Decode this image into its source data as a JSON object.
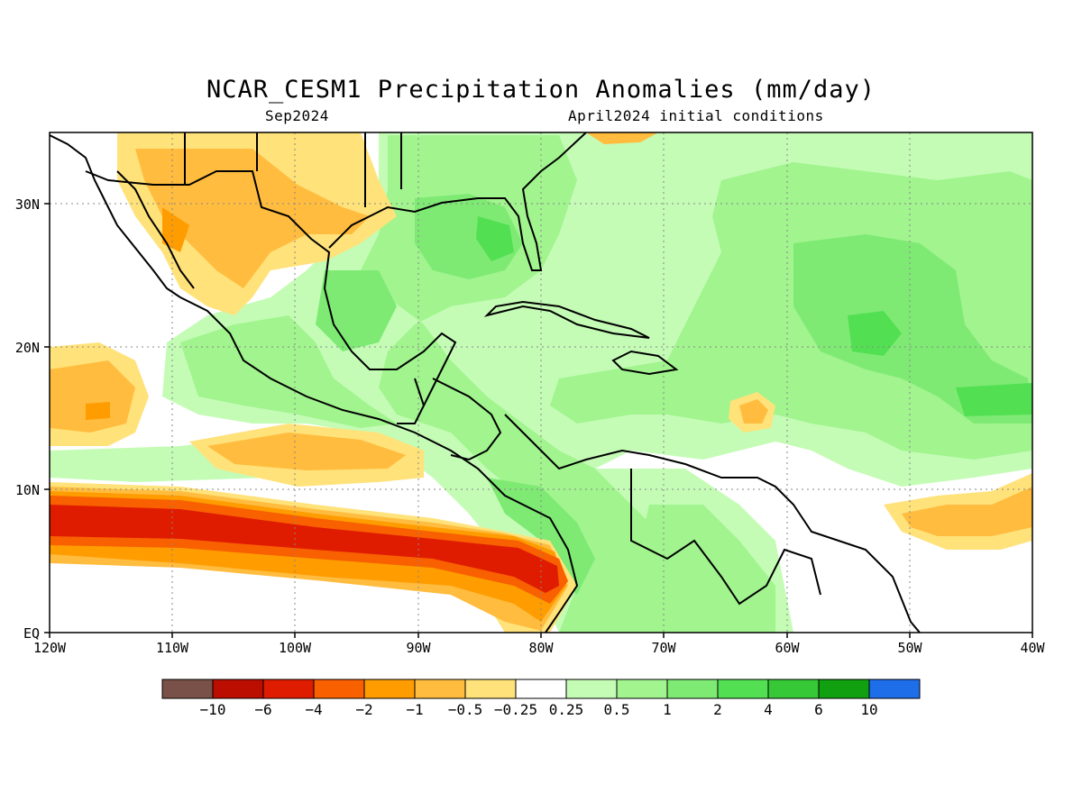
{
  "title": "NCAR_CESM1 Precipitation Anomalies (mm/day)",
  "subtitle_left": "Sep2024",
  "subtitle_right": "April2024 initial conditions",
  "lon_ticks": [
    "120W",
    "110W",
    "100W",
    "90W",
    "80W",
    "70W",
    "60W",
    "50W",
    "40W"
  ],
  "lat_ticks": [
    "30N",
    "20N",
    "10N",
    "EQ"
  ],
  "colorbar": {
    "colors": [
      "#7a5148",
      "#bb0d00",
      "#e01c00",
      "#f86000",
      "#ff9c00",
      "#ffbc3e",
      "#ffe27a",
      "#ffffff",
      "#c4fcb6",
      "#a1f48e",
      "#7eea74",
      "#52e052",
      "#36c836",
      "#10a010",
      "#1e6eea"
    ],
    "labels": [
      "−10",
      "−6",
      "−4",
      "−2",
      "−1",
      "−0.5",
      "−0.25",
      "0.25",
      "0.5",
      "1",
      "2",
      "4",
      "6",
      "10"
    ]
  }
}
